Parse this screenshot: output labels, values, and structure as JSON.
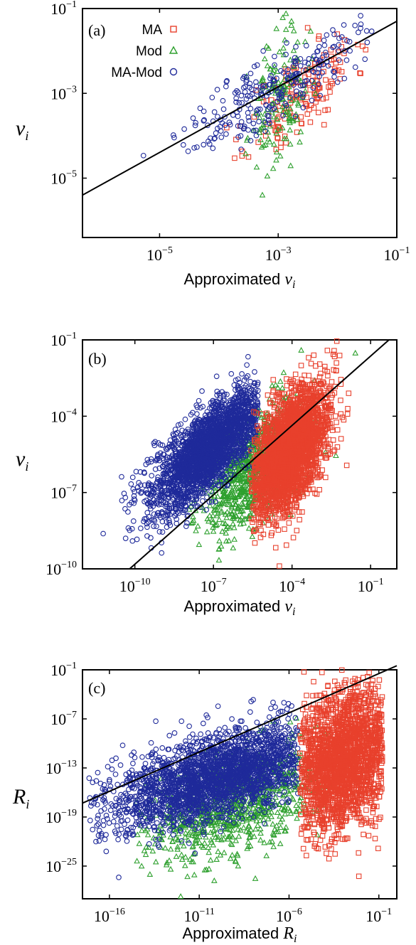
{
  "colors": {
    "MA": "#e8402c",
    "Mod": "#2ea02e",
    "MA-Mod": "#1f2a9a",
    "fit_line": "#000000"
  },
  "chart_data": [
    {
      "type": "scatter",
      "panel_label": "(a)",
      "log_x": true,
      "log_y": true,
      "xlim_exp": [
        -6.3,
        -1
      ],
      "ylim_exp": [
        -6.4,
        -1
      ],
      "x_ticks": [
        {
          "base": "10",
          "exp": "−5",
          "value": -5
        },
        {
          "base": "10",
          "exp": "−3",
          "value": -3
        },
        {
          "base": "10",
          "exp": "−1",
          "value": -1
        }
      ],
      "y_ticks": [
        {
          "base": "10",
          "exp": "−1",
          "value": -1
        },
        {
          "base": "10",
          "exp": "−3",
          "value": -3
        },
        {
          "base": "10",
          "exp": "−5",
          "value": -5
        }
      ],
      "xlabel": {
        "text": "Approximated ",
        "var": "v",
        "sub": "i"
      },
      "ylabel": {
        "var": "v",
        "sub": "i"
      },
      "legend": {
        "placement": "top-left",
        "entries": [
          "MA",
          "Mod",
          "MA-Mod"
        ]
      },
      "diagonal": {
        "from": [
          -6.3,
          -5.4
        ],
        "to": [
          -1,
          -1.3
        ]
      },
      "series": [
        {
          "name": "MA",
          "marker": "square",
          "count": 170,
          "cx": -2.6,
          "cy": -3.0,
          "sx": 0.45,
          "sy": 0.7,
          "corr": 0.65,
          "xmin": -5.0,
          "xmax": -1.5,
          "seed": 11
        },
        {
          "name": "Mod",
          "marker": "triangle",
          "count": 150,
          "cx": -3.0,
          "cy": -3.2,
          "sx": 0.25,
          "sy": 0.8,
          "corr": 0.3,
          "xmin": -3.6,
          "xmax": -2.3,
          "seed": 23
        },
        {
          "name": "MA-Mod",
          "marker": "circle",
          "count": 260,
          "cx": -3.1,
          "cy": -2.9,
          "sx": 0.7,
          "sy": 0.7,
          "corr": 0.8,
          "xmin": -6.2,
          "xmax": -1.2,
          "seed": 37
        }
      ]
    },
    {
      "type": "scatter",
      "panel_label": "(b)",
      "log_x": true,
      "log_y": true,
      "xlim_exp": [
        -12,
        0
      ],
      "ylim_exp": [
        -10,
        -1
      ],
      "x_ticks": [
        {
          "base": "10",
          "exp": "−10",
          "value": -10
        },
        {
          "base": "10",
          "exp": "−7",
          "value": -7
        },
        {
          "base": "10",
          "exp": "−4",
          "value": -4
        },
        {
          "base": "10",
          "exp": "−1",
          "value": -1
        }
      ],
      "y_ticks": [
        {
          "base": "10",
          "exp": "−1",
          "value": -1
        },
        {
          "base": "10",
          "exp": "−4",
          "value": -4
        },
        {
          "base": "10",
          "exp": "−7",
          "value": -7
        },
        {
          "base": "10",
          "exp": "−10",
          "value": -10
        }
      ],
      "xlabel": {
        "text": "Approximated ",
        "var": "v",
        "sub": "i"
      },
      "ylabel": {
        "var": "v",
        "sub": "i"
      },
      "legend": null,
      "diagonal": {
        "from": [
          -10.2,
          -10
        ],
        "to": [
          -0.3,
          -1
        ]
      },
      "series": [
        {
          "name": "Mod",
          "marker": "triangle",
          "count": 900,
          "cx": -5.4,
          "cy": -6.0,
          "sx": 1.0,
          "sy": 1.3,
          "corr": 0.6,
          "xmin": -8.8,
          "xmax": -1.5,
          "seed": 51
        },
        {
          "name": "MA-Mod",
          "marker": "circle",
          "count": 2600,
          "cx": -7.2,
          "cy": -5.3,
          "sx": 1.1,
          "sy": 1.2,
          "corr": 0.75,
          "xmin": -11.5,
          "xmax": -5.3,
          "seed": 63
        },
        {
          "name": "MA",
          "marker": "square",
          "count": 2600,
          "cx": -4.1,
          "cy": -5.4,
          "sx": 0.75,
          "sy": 1.3,
          "corr": 0.55,
          "xmin": -5.6,
          "xmax": -1.8,
          "seed": 77
        }
      ]
    },
    {
      "type": "scatter",
      "panel_label": "(c)",
      "log_x": true,
      "log_y": true,
      "xlim_exp": [
        -17.5,
        0
      ],
      "ylim_exp": [
        -29,
        -1
      ],
      "x_ticks": [
        {
          "base": "10",
          "exp": "−16",
          "value": -16
        },
        {
          "base": "10",
          "exp": "−11",
          "value": -11
        },
        {
          "base": "10",
          "exp": "−6",
          "value": -6
        },
        {
          "base": "10",
          "exp": "−1",
          "value": -1
        }
      ],
      "y_ticks": [
        {
          "base": "10",
          "exp": "−1",
          "value": -1
        },
        {
          "base": "10",
          "exp": "−7",
          "value": -7
        },
        {
          "base": "10",
          "exp": "−13",
          "value": -13
        },
        {
          "base": "10",
          "exp": "−19",
          "value": -19
        },
        {
          "base": "10",
          "exp": "−25",
          "value": -25
        }
      ],
      "xlabel": {
        "text": "Approximated ",
        "var": "R",
        "sub": "i"
      },
      "ylabel": {
        "var": "R",
        "sub": "i"
      },
      "legend": null,
      "diagonal": {
        "from": [
          -17.5,
          -17.3
        ],
        "to": [
          0,
          -0.5
        ]
      },
      "series": [
        {
          "name": "Mod",
          "marker": "triangle",
          "count": 900,
          "cx": -9.0,
          "cy": -17.5,
          "sx": 2.6,
          "sy": 3.5,
          "corr": 0.5,
          "xmin": -14.5,
          "xmax": -3.5,
          "seed": 91
        },
        {
          "name": "MA-Mod",
          "marker": "circle",
          "count": 2600,
          "cx": -10.0,
          "cy": -14.0,
          "sx": 3.0,
          "sy": 3.2,
          "corr": 0.6,
          "xmin": -17.2,
          "xmax": -5.5,
          "seed": 101
        },
        {
          "name": "MA",
          "marker": "square",
          "count": 2400,
          "cx": -3.0,
          "cy": -12.0,
          "sx": 1.5,
          "sy": 4.5,
          "corr": 0.3,
          "xmin": -5.4,
          "xmax": -0.8,
          "seed": 113
        }
      ]
    }
  ]
}
